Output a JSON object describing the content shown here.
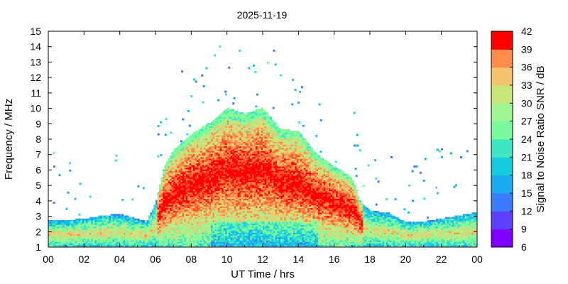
{
  "chart_data": {
    "type": "heatmap",
    "title": "2025-11-19",
    "xlabel": "UT Time / hrs",
    "ylabel": "Frequency / MHz",
    "colorbar_label": "Signal to Noise Ratio SNR / dB",
    "xlim": [
      0,
      24
    ],
    "ylim": [
      1,
      15
    ],
    "x_ticks": [
      "00",
      "02",
      "04",
      "06",
      "08",
      "10",
      "12",
      "14",
      "16",
      "18",
      "20",
      "22",
      "00"
    ],
    "y_ticks": [
      "1",
      "2",
      "3",
      "4",
      "5",
      "6",
      "7",
      "8",
      "9",
      "10",
      "11",
      "12",
      "13",
      "14",
      "15"
    ],
    "colorbar": {
      "range": [
        6,
        42
      ],
      "ticks": [
        "6",
        "9",
        "12",
        "15",
        "18",
        "21",
        "24",
        "27",
        "30",
        "33",
        "36",
        "39",
        "42"
      ],
      "colors": [
        "#7f00ff",
        "#5d40ff",
        "#3c7cff",
        "#1aaaf0",
        "#14cce0",
        "#3ee6c4",
        "#78fa9c",
        "#9ef592",
        "#c8e67a",
        "#f5c26e",
        "#ff8c4a",
        "#ff5028",
        "#ff0000"
      ]
    },
    "upper_envelope_mhz": {
      "hours": [
        0,
        1,
        2,
        3,
        4,
        5,
        5.5,
        6,
        6.5,
        7,
        8,
        9,
        10,
        11,
        12,
        13,
        14,
        15,
        16,
        17,
        17.5,
        18,
        19,
        20,
        21,
        22,
        23,
        24
      ],
      "freq": [
        2.7,
        2.7,
        2.8,
        3.0,
        3.1,
        2.8,
        2.6,
        3.8,
        6.2,
        7.2,
        8.3,
        9.0,
        10.0,
        9.6,
        10.0,
        8.6,
        8.5,
        7.0,
        6.2,
        5.5,
        3.8,
        3.3,
        3.2,
        2.6,
        2.6,
        2.8,
        3.0,
        3.2
      ]
    },
    "peak_snr_core_db": 42
  }
}
